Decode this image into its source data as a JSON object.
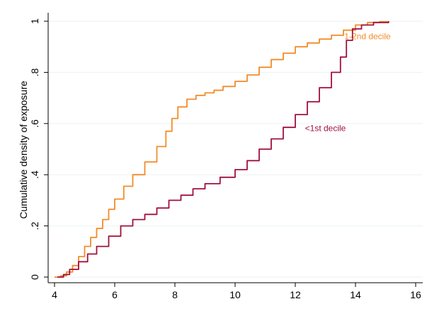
{
  "colors": {
    "background": "#ffffff",
    "gridline": "#eaf2f3",
    "axis": "#000000",
    "series_1_2nd": "#f28c28",
    "series_1st": "#a0103c"
  },
  "chart_data": {
    "type": "line",
    "title": "",
    "xlabel": "",
    "ylabel": "Cumulative density of exposure",
    "xlim": [
      4,
      16
    ],
    "ylim": [
      0,
      1
    ],
    "x_ticks": [
      4,
      6,
      8,
      10,
      12,
      14,
      16
    ],
    "x_tick_labels": [
      "4",
      "6",
      "8",
      "10",
      "12",
      "14",
      "16"
    ],
    "y_ticks": [
      0,
      0.2,
      0.4,
      0.6,
      0.8,
      1
    ],
    "y_tick_labels": [
      "0",
      ".2",
      ".4",
      ".6",
      ".8",
      "1"
    ],
    "grid": "horizontal",
    "legend": "none",
    "series": [
      {
        "name": "1-2nd decile",
        "color": "#f28c28",
        "label_at": [
          14.4,
          0.93
        ],
        "x": [
          4.0,
          4.2,
          4.4,
          4.6,
          4.8,
          5.0,
          5.2,
          5.4,
          5.6,
          5.8,
          6.0,
          6.3,
          6.6,
          7.0,
          7.4,
          7.7,
          7.9,
          8.1,
          8.4,
          8.7,
          9.0,
          9.3,
          9.6,
          10.0,
          10.4,
          10.8,
          11.2,
          11.6,
          12.0,
          12.4,
          12.8,
          13.2,
          13.6,
          14.0,
          14.4,
          14.8,
          15.1
        ],
        "y": [
          0.0,
          0.005,
          0.02,
          0.045,
          0.08,
          0.12,
          0.155,
          0.19,
          0.225,
          0.265,
          0.305,
          0.355,
          0.4,
          0.45,
          0.51,
          0.57,
          0.62,
          0.665,
          0.695,
          0.71,
          0.72,
          0.73,
          0.745,
          0.765,
          0.79,
          0.82,
          0.85,
          0.875,
          0.9,
          0.915,
          0.93,
          0.945,
          0.965,
          0.985,
          0.995,
          0.998,
          1.0
        ]
      },
      {
        "name": "<1st decile",
        "color": "#a0103c",
        "label_at": [
          13.0,
          0.57
        ],
        "x": [
          4.1,
          4.3,
          4.5,
          4.8,
          5.1,
          5.4,
          5.8,
          6.2,
          6.6,
          7.0,
          7.4,
          7.8,
          8.2,
          8.6,
          9.0,
          9.5,
          10.0,
          10.4,
          10.8,
          11.2,
          11.6,
          12.0,
          12.4,
          12.8,
          13.2,
          13.5,
          13.7,
          13.9,
          14.2,
          14.6,
          15.1
        ],
        "y": [
          0.0,
          0.01,
          0.03,
          0.06,
          0.09,
          0.12,
          0.16,
          0.2,
          0.225,
          0.245,
          0.27,
          0.3,
          0.32,
          0.345,
          0.365,
          0.39,
          0.42,
          0.455,
          0.5,
          0.54,
          0.585,
          0.635,
          0.685,
          0.74,
          0.8,
          0.86,
          0.925,
          0.97,
          0.985,
          0.995,
          1.0
        ]
      }
    ]
  }
}
